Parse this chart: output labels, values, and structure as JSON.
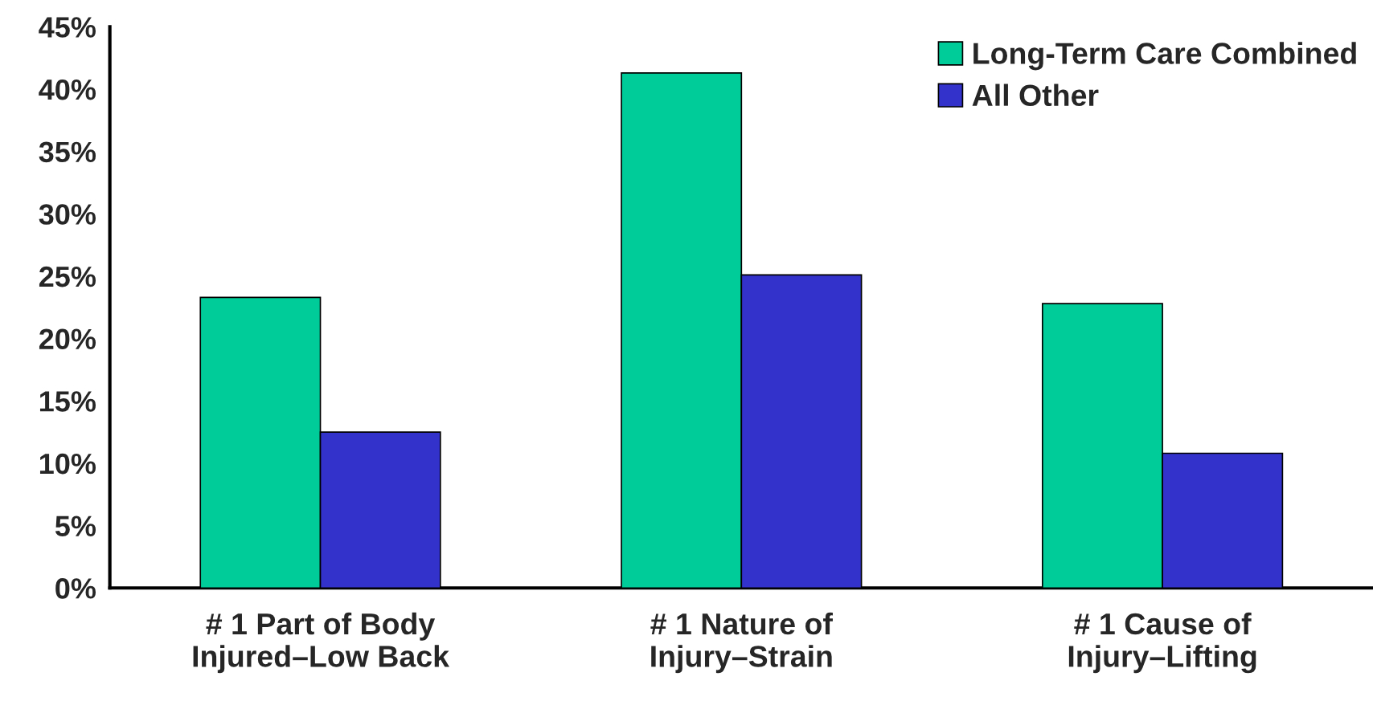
{
  "chart_data": {
    "type": "bar",
    "categories": [
      "# 1 Part of Body\nInjured–Low Back",
      "# 1 Nature of\nInjury–Strain",
      "# 1 Cause of\nInjury–Lifting"
    ],
    "series": [
      {
        "name": "Long-Term Care Combined",
        "color": "#00cc99",
        "values": [
          23.3,
          41.3,
          22.8
        ]
      },
      {
        "name": "All Other",
        "color": "#3333cc",
        "values": [
          12.5,
          25.1,
          10.8
        ]
      }
    ],
    "ylim": [
      0,
      45
    ],
    "yticks": [
      {
        "value": 0,
        "label": "0%"
      },
      {
        "value": 5,
        "label": "5%"
      },
      {
        "value": 10,
        "label": "10%"
      },
      {
        "value": 15,
        "label": "15%"
      },
      {
        "value": 20,
        "label": "20%"
      },
      {
        "value": 25,
        "label": "25%"
      },
      {
        "value": 30,
        "label": "30%"
      },
      {
        "value": 35,
        "label": "35%"
      },
      {
        "value": 40,
        "label": "40%"
      },
      {
        "value": 45,
        "label": "45%"
      }
    ],
    "grid": false,
    "legend": "top right"
  }
}
